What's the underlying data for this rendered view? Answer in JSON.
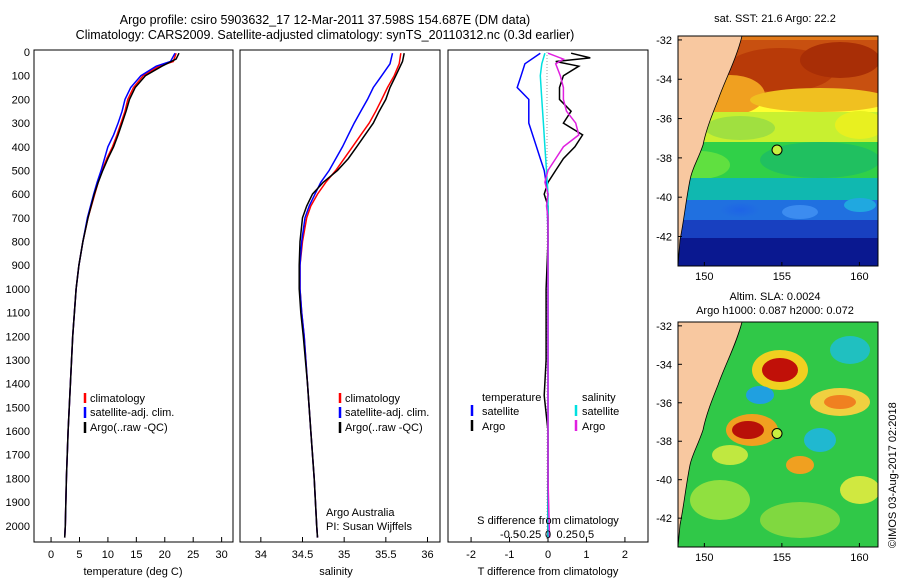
{
  "header": {
    "line1": "Argo profile: csiro 5903632_17 12-Mar-2011 37.598S 154.687E (DM data)",
    "line2": "Climatology: CARS2009. Satellite-adjusted climatology: synTS_20110312.nc (0.3d earlier)"
  },
  "colors": {
    "climatology": "#ff0000",
    "satellite": "#0000ff",
    "argo": "#000000",
    "salinity_satellite": "#00e0e0",
    "salinity_argo": "#e020e0",
    "land": "#f8c8a0"
  },
  "depth_axis": {
    "ticks": [
      "0",
      "100",
      "200",
      "300",
      "400",
      "500",
      "600",
      "700",
      "800",
      "900",
      "1000",
      "1100",
      "1200",
      "1300",
      "1400",
      "1500",
      "1600",
      "1700",
      "1800",
      "1900",
      "2000"
    ],
    "range": [
      0,
      2060
    ]
  },
  "chart_data": [
    {
      "name": "temperature-panel",
      "type": "line",
      "xlabel": "temperature (deg C)",
      "xlim": [
        -3,
        32
      ],
      "xticks": [
        "0",
        "5",
        "10",
        "15",
        "20",
        "25",
        "30"
      ],
      "ylabel": "depth",
      "ylim": [
        0,
        2060
      ],
      "legend": [
        "climatology",
        "satellite-adj. clim.",
        "Argo(..raw -QC)"
      ],
      "series": [
        {
          "name": "climatology",
          "depth": [
            5,
            40,
            60,
            100,
            150,
            200,
            250,
            300,
            350,
            400,
            450,
            500,
            550,
            600,
            700,
            800,
            900,
            1000,
            1200,
            1400,
            1600,
            1800,
            2000,
            2050
          ],
          "values": [
            22.0,
            21.5,
            19.0,
            16.2,
            14.5,
            13.5,
            13.0,
            12.3,
            11.6,
            10.8,
            9.8,
            9.0,
            8.3,
            7.7,
            6.5,
            5.6,
            4.9,
            4.4,
            3.8,
            3.4,
            3.0,
            2.7,
            2.5,
            2.4
          ]
        },
        {
          "name": "satellite",
          "depth": [
            5,
            40,
            60,
            100,
            150,
            200,
            250,
            300,
            350,
            400,
            450,
            500,
            550,
            600,
            700,
            800,
            900,
            1000,
            1200,
            1400,
            1600,
            1800,
            2000,
            2050
          ],
          "values": [
            21.8,
            21.0,
            18.5,
            15.8,
            14.0,
            13.0,
            12.5,
            11.8,
            11.0,
            10.0,
            9.4,
            8.8,
            8.1,
            7.5,
            6.4,
            5.6,
            4.9,
            4.4,
            3.8,
            3.4,
            3.0,
            2.7,
            2.5,
            2.4
          ]
        },
        {
          "name": "argo",
          "depth": [
            5,
            30,
            60,
            100,
            150,
            200,
            250,
            300,
            350,
            400,
            450,
            500,
            550,
            600,
            700,
            800,
            900,
            1000,
            1200,
            1400,
            1600,
            1800,
            2000,
            2050
          ],
          "values": [
            22.5,
            22.0,
            19.5,
            16.6,
            14.8,
            13.8,
            13.2,
            12.5,
            11.8,
            11.0,
            10.0,
            9.1,
            8.3,
            7.6,
            6.5,
            5.6,
            4.9,
            4.4,
            3.8,
            3.4,
            3.0,
            2.7,
            2.5,
            2.4
          ]
        }
      ]
    },
    {
      "name": "salinity-panel",
      "type": "line",
      "xlabel": "salinity",
      "xlim": [
        33.75,
        36.15
      ],
      "xticks": [
        "34",
        "34.5",
        "35",
        "35.5",
        "36"
      ],
      "ylim": [
        0,
        2060
      ],
      "legend": [
        "climatology",
        "satellite-adj. clim.",
        "Argo(..raw -QC)"
      ],
      "annotation": [
        "Argo Australia",
        "PI: Susan Wijffels"
      ],
      "series": [
        {
          "name": "climatology",
          "depth": [
            5,
            50,
            100,
            150,
            200,
            250,
            300,
            350,
            400,
            450,
            500,
            550,
            600,
            650,
            700,
            800,
            900,
            1000,
            1100,
            1200,
            1400,
            1600,
            1800,
            2000,
            2050
          ],
          "values": [
            35.68,
            35.66,
            35.6,
            35.52,
            35.45,
            35.38,
            35.3,
            35.2,
            35.1,
            35.0,
            34.9,
            34.78,
            34.68,
            34.6,
            34.55,
            34.5,
            34.47,
            34.47,
            34.49,
            34.52,
            34.56,
            34.6,
            34.64,
            34.67,
            34.68
          ]
        },
        {
          "name": "satellite",
          "depth": [
            5,
            50,
            100,
            150,
            200,
            250,
            300,
            350,
            400,
            450,
            500,
            550,
            600,
            650,
            700,
            800,
            900,
            1000,
            1100,
            1200,
            1400,
            1600,
            1800,
            2000,
            2050
          ],
          "values": [
            35.58,
            35.55,
            35.45,
            35.35,
            35.28,
            35.2,
            35.12,
            35.05,
            34.98,
            34.9,
            34.82,
            34.72,
            34.65,
            34.58,
            34.53,
            34.49,
            34.47,
            34.47,
            34.49,
            34.52,
            34.56,
            34.6,
            34.64,
            34.67,
            34.68
          ]
        },
        {
          "name": "argo",
          "depth": [
            5,
            40,
            100,
            150,
            200,
            250,
            300,
            350,
            400,
            450,
            500,
            550,
            600,
            650,
            700,
            800,
            900,
            1000,
            1100,
            1200,
            1400,
            1600,
            1800,
            2000,
            2050
          ],
          "values": [
            35.72,
            35.7,
            35.62,
            35.55,
            35.5,
            35.42,
            35.35,
            35.25,
            35.15,
            35.05,
            34.92,
            34.75,
            34.62,
            34.55,
            34.5,
            34.47,
            34.46,
            34.46,
            34.48,
            34.51,
            34.56,
            34.6,
            34.64,
            34.67,
            34.68
          ]
        }
      ]
    },
    {
      "name": "difference-panel",
      "type": "line",
      "xlabel": "T difference from climatology",
      "xlim": [
        -2.6,
        2.6
      ],
      "xticks": [
        "-2",
        "-1",
        "0",
        "1",
        "2"
      ],
      "top_label": "S difference from climatology",
      "top_ticks": [
        "-0.5",
        "-0.25",
        "0",
        "0.25",
        "0.5"
      ],
      "ylim": [
        0,
        2060
      ],
      "legend": {
        "temperature": [
          "temperature",
          "satellite",
          "Argo"
        ],
        "salinity": [
          "salinity",
          "satellite",
          "Argo"
        ]
      },
      "series": [
        {
          "name": "temperature satellite",
          "depth": [
            5,
            50,
            100,
            150,
            200,
            300,
            400,
            450,
            500,
            550,
            600,
            650,
            700,
            800,
            1000,
            1200,
            1500,
            1800,
            2000,
            2050
          ],
          "values": [
            -0.2,
            -0.6,
            -0.7,
            -0.8,
            -0.5,
            -0.5,
            -0.3,
            -0.2,
            -0.1,
            -0.05,
            0.0,
            -0.02,
            -0.01,
            0.0,
            0.0,
            0.0,
            0.0,
            0.0,
            0.0,
            0.0
          ]
        },
        {
          "name": "temperature argo",
          "depth": [
            5,
            25,
            40,
            60,
            100,
            150,
            200,
            250,
            300,
            350,
            400,
            450,
            500,
            550,
            600,
            650,
            700,
            800,
            1000,
            1300,
            1450,
            1600,
            1800,
            2000,
            2050
          ],
          "values": [
            0.6,
            1.1,
            0.2,
            0.8,
            0.4,
            0.3,
            0.3,
            0.6,
            0.4,
            0.9,
            0.7,
            0.4,
            0.2,
            0.0,
            -0.1,
            0.0,
            0.0,
            0.0,
            -0.05,
            -0.05,
            -0.1,
            0.0,
            0.0,
            0.0,
            0.0
          ]
        },
        {
          "name": "salinity satellite",
          "depth": [
            5,
            50,
            100,
            200,
            300,
            400,
            500,
            600,
            700,
            800,
            1000,
            1500,
            2050
          ],
          "values": [
            -0.02,
            -0.04,
            -0.05,
            -0.04,
            -0.03,
            -0.02,
            -0.01,
            0.0,
            0.0,
            0.0,
            0.0,
            0.0,
            0.0
          ]
        },
        {
          "name": "salinity argo",
          "depth": [
            5,
            30,
            50,
            100,
            150,
            200,
            250,
            300,
            350,
            400,
            450,
            500,
            550,
            600,
            650,
            700,
            800,
            1000,
            1500,
            1800,
            2050
          ],
          "values": [
            0.0,
            0.1,
            0.05,
            0.08,
            0.1,
            0.1,
            0.12,
            0.18,
            0.2,
            0.1,
            0.05,
            0.0,
            -0.02,
            0.0,
            -0.01,
            0.0,
            0.0,
            0.0,
            0.0,
            0.0,
            0.01
          ]
        }
      ]
    }
  ],
  "maps": {
    "sst": {
      "title": "sat. SST: 21.6 Argo: 22.2",
      "yticks": [
        "-32",
        "-34",
        "-36",
        "-38",
        "-40",
        "-42"
      ],
      "xticks": [
        "150",
        "155",
        "160"
      ],
      "lon_range": [
        148.3,
        161.2
      ],
      "lat_range": [
        -43.5,
        -31.8
      ],
      "argo_position": {
        "lon": 154.687,
        "lat": -37.598
      }
    },
    "sla": {
      "title_line1": "Altim. SLA: 0.0024",
      "title_line2": "Argo h1000: 0.087 h2000: 0.072",
      "yticks": [
        "-32",
        "-34",
        "-36",
        "-38",
        "-40",
        "-42"
      ],
      "xticks": [
        "150",
        "155",
        "160"
      ],
      "lon_range": [
        148.3,
        161.2
      ],
      "lat_range": [
        -43.5,
        -31.8
      ],
      "argo_position": {
        "lon": 154.687,
        "lat": -37.598
      }
    },
    "credit": "©IMOS 03-Aug-2017 02:2018"
  }
}
